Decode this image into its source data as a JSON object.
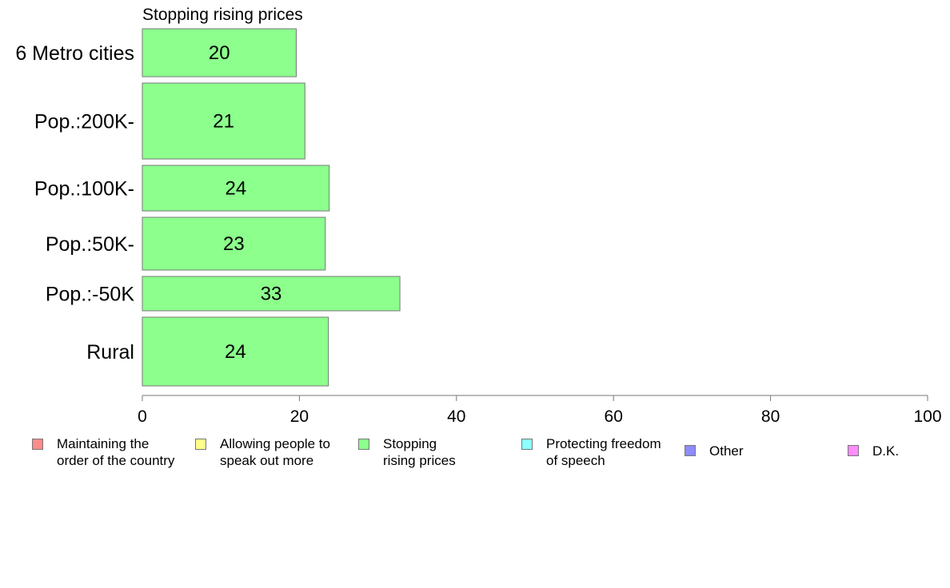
{
  "chart_data": {
    "type": "bar",
    "orientation": "horizontal",
    "title": "Stopping rising prices",
    "xlabel": "",
    "ylabel": "",
    "xlim": [
      0,
      100
    ],
    "xticks": [
      0,
      20,
      40,
      60,
      80,
      100
    ],
    "grid": false,
    "categories": [
      "6 Metro cities",
      "Pop.:200K-",
      "Pop.:100K-",
      "Pop.:50K-",
      "Pop.:-50K",
      "Rural"
    ],
    "relative_widths": [
      0.6,
      0.95,
      0.57,
      0.66,
      0.43,
      0.86
    ],
    "series": [
      {
        "name": "Stopping\nrising prices",
        "color": "#8cff8c",
        "values": [
          19.6,
          20.7,
          23.8,
          23.3,
          32.8,
          23.7
        ],
        "labels": [
          "20",
          "21",
          "24",
          "23",
          "33",
          "24"
        ]
      }
    ],
    "legend_position": "bottom",
    "legend": [
      {
        "label": "Maintaining the\norder of the country",
        "color": "#ff8c8c"
      },
      {
        "label": "Allowing people to\nspeak out more",
        "color": "#ffff8c"
      },
      {
        "label": "Stopping\nrising prices",
        "color": "#8cff8c"
      },
      {
        "label": "Protecting freedom\nof speech",
        "color": "#8cffff"
      },
      {
        "label": "Other",
        "color": "#8c8cff"
      },
      {
        "label": "D.K.",
        "color": "#ff8cff"
      }
    ]
  }
}
